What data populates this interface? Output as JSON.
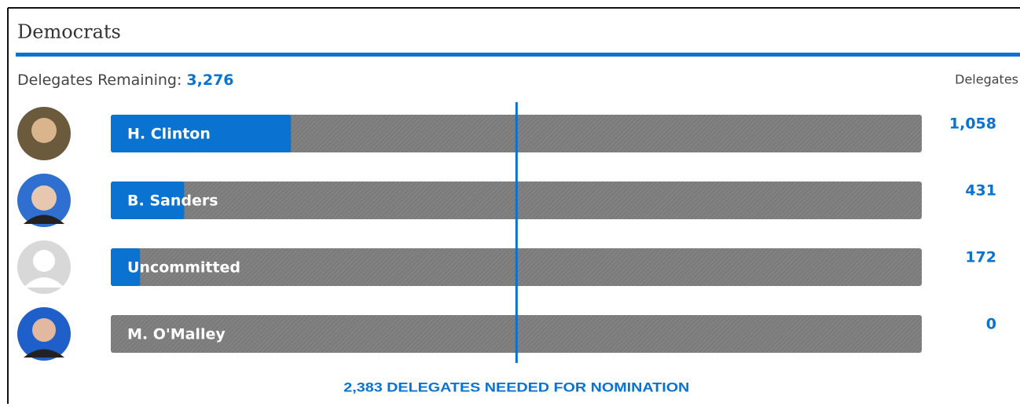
{
  "chart_data": {
    "type": "bar",
    "title": "Democrats",
    "remaining_label": "Delegates Remaining:",
    "remaining_value": "3,276",
    "value_header": "Delegates",
    "categories": [
      "H. Clinton",
      "B. Sanders",
      "Uncommitted",
      "M. O'Malley"
    ],
    "values": [
      1058,
      431,
      172,
      0
    ],
    "value_labels": [
      "1,058",
      "431",
      "172",
      "0"
    ],
    "color": "#0a72d0",
    "track_color": "#7b7b7b",
    "xlim": [
      0,
      4763
    ],
    "threshold": 2383,
    "annotation": "2,383 DELEGATES NEEDED FOR NOMINATION"
  }
}
